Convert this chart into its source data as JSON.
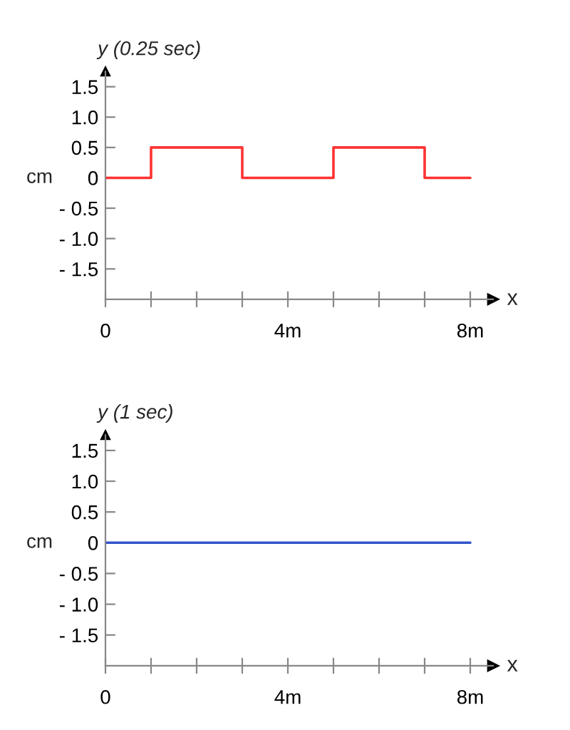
{
  "chart_data": [
    {
      "type": "step",
      "title": "y (0.25 sec)",
      "ylabel": "cm",
      "xlabel": "x",
      "x": [
        0,
        1,
        3,
        5,
        7,
        8
      ],
      "series": [
        {
          "color": "#ff3333",
          "values": [
            0,
            0.5,
            0,
            0.5,
            0,
            0
          ]
        }
      ],
      "xlim": [
        0,
        8.5
      ],
      "ylim": [
        -2.0,
        1.75
      ],
      "xticks": [
        0,
        {
          "value": 1,
          "label": null
        },
        {
          "value": 2,
          "label": null
        },
        {
          "value": 3,
          "label": null
        },
        {
          "value": 4,
          "label": "4m"
        },
        {
          "value": 5,
          "label": null
        },
        {
          "value": 6,
          "label": null
        },
        {
          "value": 7,
          "label": null
        },
        {
          "value": 8,
          "label": "8m"
        }
      ],
      "yticks": [
        {
          "value": 1.5,
          "label": "1.5"
        },
        {
          "value": 1.0,
          "label": "1.0"
        },
        {
          "value": 0.5,
          "label": "0.5"
        },
        0,
        {
          "value": -0.5,
          "label": "- 0.5"
        },
        {
          "value": -1.0,
          "label": "- 1.0"
        },
        {
          "value": -1.5,
          "label": "- 1.5"
        }
      ],
      "grid": false
    },
    {
      "type": "line",
      "title": "y (1 sec)",
      "ylabel": "cm",
      "xlabel": "x",
      "x": [
        0,
        8
      ],
      "series": [
        {
          "color": "#3355cc",
          "values": [
            0,
            0
          ]
        }
      ],
      "xlim": [
        0,
        8.5
      ],
      "ylim": [
        -2.0,
        1.75
      ],
      "xticks": [
        0,
        {
          "value": 1,
          "label": null
        },
        {
          "value": 2,
          "label": null
        },
        {
          "value": 3,
          "label": null
        },
        {
          "value": 4,
          "label": "4m"
        },
        {
          "value": 5,
          "label": null
        },
        {
          "value": 6,
          "label": null
        },
        {
          "value": 7,
          "label": null
        },
        {
          "value": 8,
          "label": "8m"
        }
      ],
      "yticks": [
        {
          "value": 1.5,
          "label": "1.5"
        },
        {
          "value": 1.0,
          "label": "1.0"
        },
        {
          "value": 0.5,
          "label": "0.5"
        },
        0,
        {
          "value": -0.5,
          "label": "- 0.5"
        },
        {
          "value": -1.0,
          "label": "- 1.0"
        },
        {
          "value": -1.5,
          "label": "- 1.5"
        }
      ],
      "grid": false
    }
  ]
}
